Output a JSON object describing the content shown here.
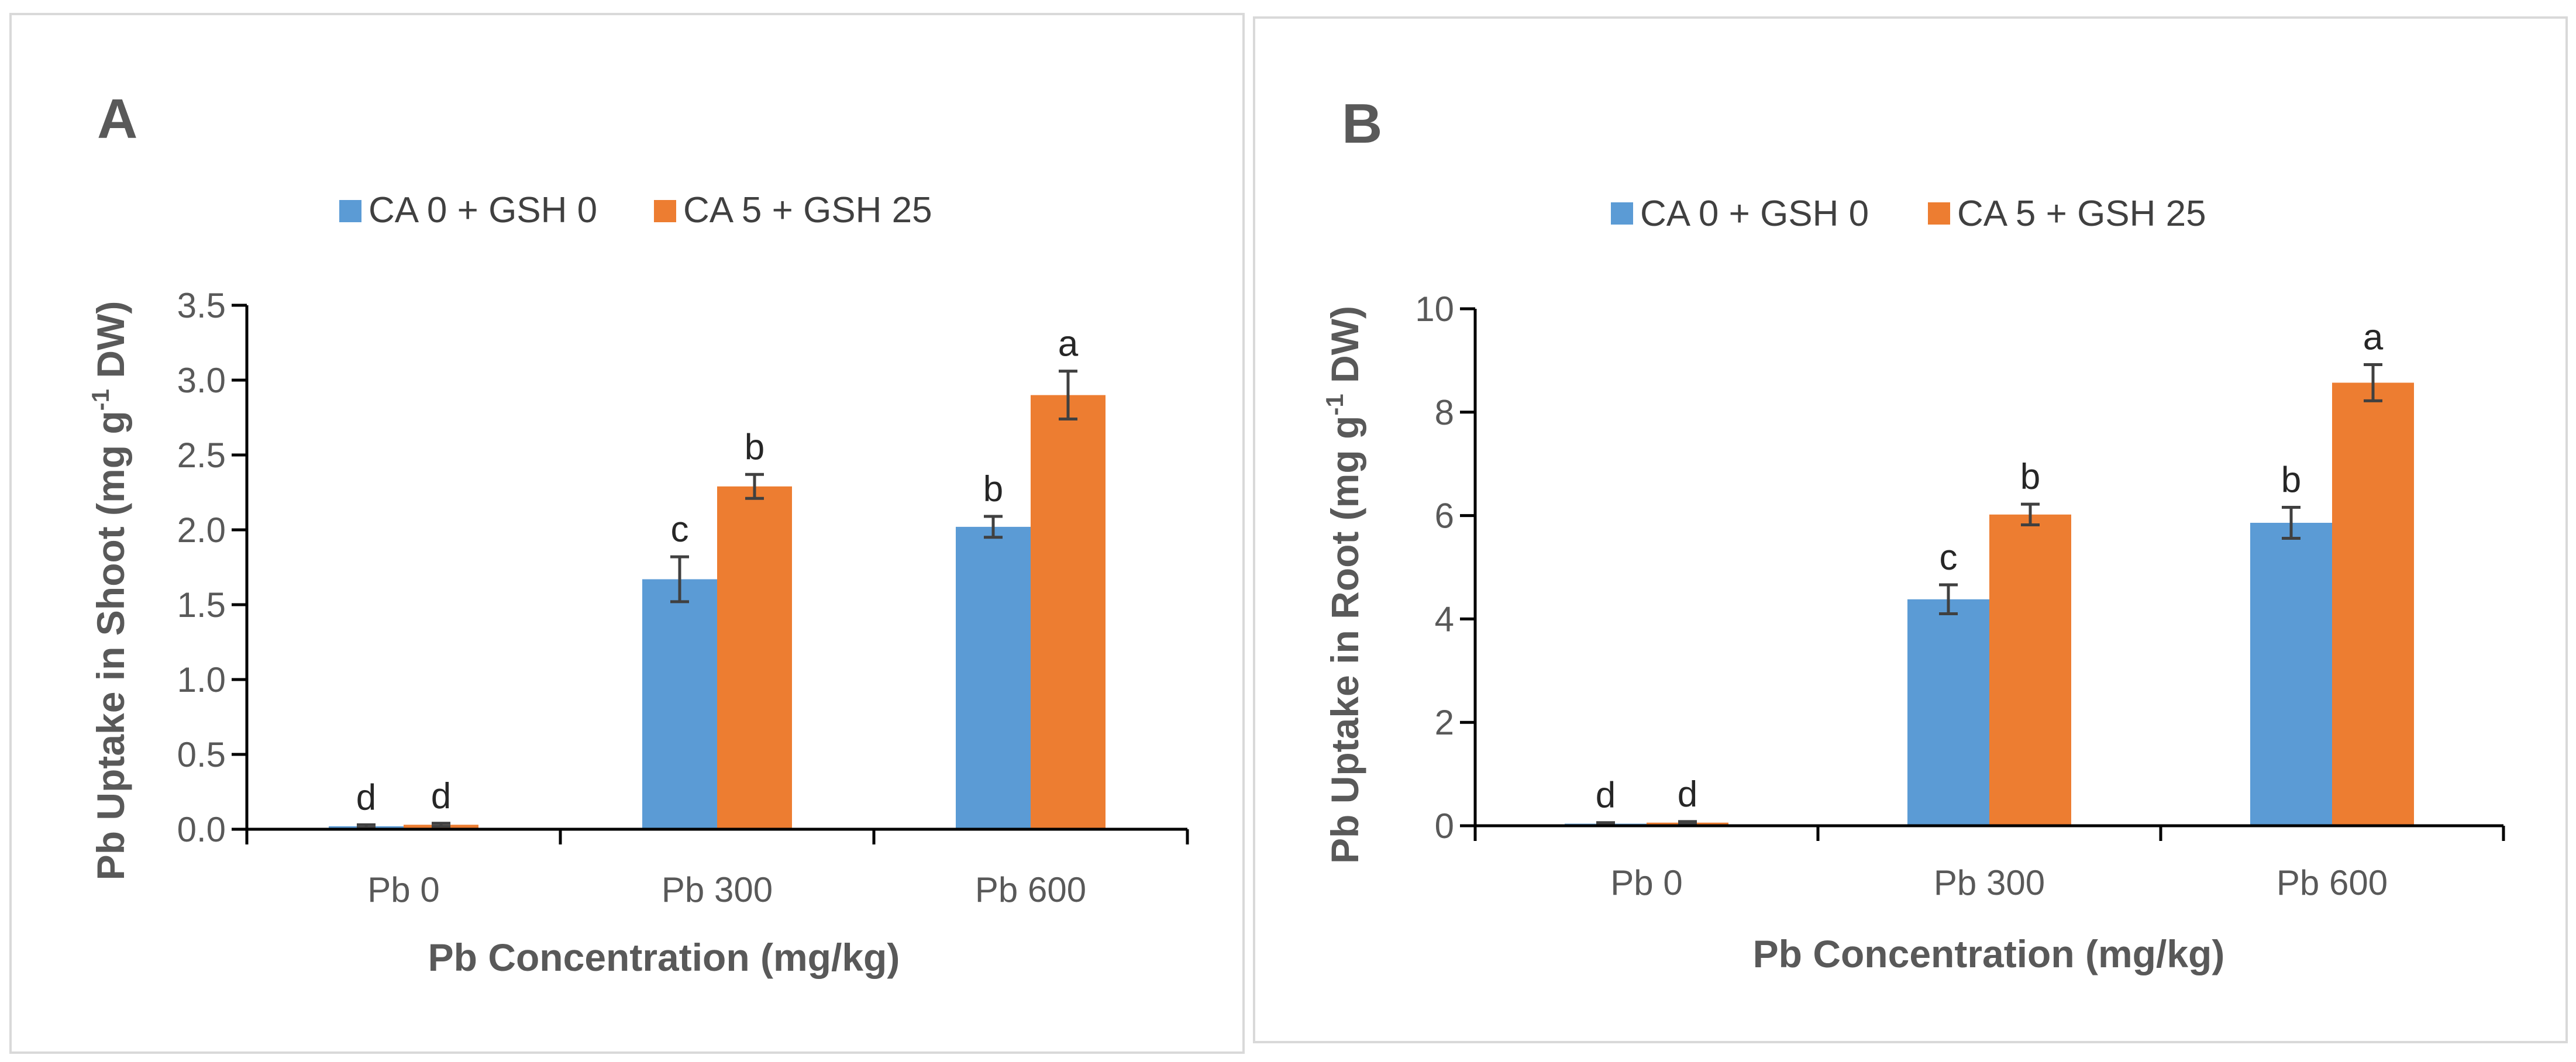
{
  "colors": {
    "series1": "#5b9bd5",
    "series2": "#ed7d31"
  },
  "chart_data": [
    {
      "type": "bar",
      "panel": "A",
      "categories": [
        "Pb 0",
        "Pb 300",
        "Pb 600"
      ],
      "series": [
        {
          "name": "CA 0 + GSH 0",
          "values": [
            0.02,
            1.67,
            2.02
          ],
          "errors": [
            0.01,
            0.15,
            0.07
          ],
          "letters": [
            "d",
            "c",
            "b"
          ]
        },
        {
          "name": "CA 5 + GSH 25",
          "values": [
            0.03,
            2.29,
            2.9
          ],
          "errors": [
            0.01,
            0.08,
            0.16
          ],
          "letters": [
            "d",
            "b",
            "a"
          ]
        }
      ],
      "xlabel": "Pb Concentration (mg/kg)",
      "ylabel": {
        "before": "Pb Uptake in Shoot (mg g",
        "sup": "-1",
        "after": " DW)"
      },
      "ylim": [
        0,
        3.5
      ],
      "yticks": [
        "0.0",
        "0.5",
        "1.0",
        "1.5",
        "2.0",
        "2.5",
        "3.0",
        "3.5"
      ],
      "legend_position": "top-center",
      "grid": false
    },
    {
      "type": "bar",
      "panel": "B",
      "categories": [
        "Pb 0",
        "Pb 300",
        "Pb 600"
      ],
      "series": [
        {
          "name": "CA 0 + GSH 0",
          "values": [
            0.04,
            4.38,
            5.86
          ],
          "errors": [
            0.02,
            0.28,
            0.3
          ],
          "letters": [
            "d",
            "c",
            "b"
          ]
        },
        {
          "name": "CA 5 + GSH 25",
          "values": [
            0.06,
            6.02,
            8.57
          ],
          "errors": [
            0.02,
            0.2,
            0.35
          ],
          "letters": [
            "d",
            "b",
            "a"
          ]
        }
      ],
      "xlabel": "Pb Concentration (mg/kg)",
      "ylabel": {
        "before": "Pb Uptake  in Root (mg g",
        "sup": "-1",
        "after": " DW)"
      },
      "ylim": [
        0,
        10
      ],
      "yticks": [
        "0",
        "2",
        "4",
        "6",
        "8",
        "10"
      ],
      "legend_position": "top-center",
      "grid": false
    }
  ],
  "panels": [
    {
      "label": "A"
    },
    {
      "label": "B"
    }
  ]
}
